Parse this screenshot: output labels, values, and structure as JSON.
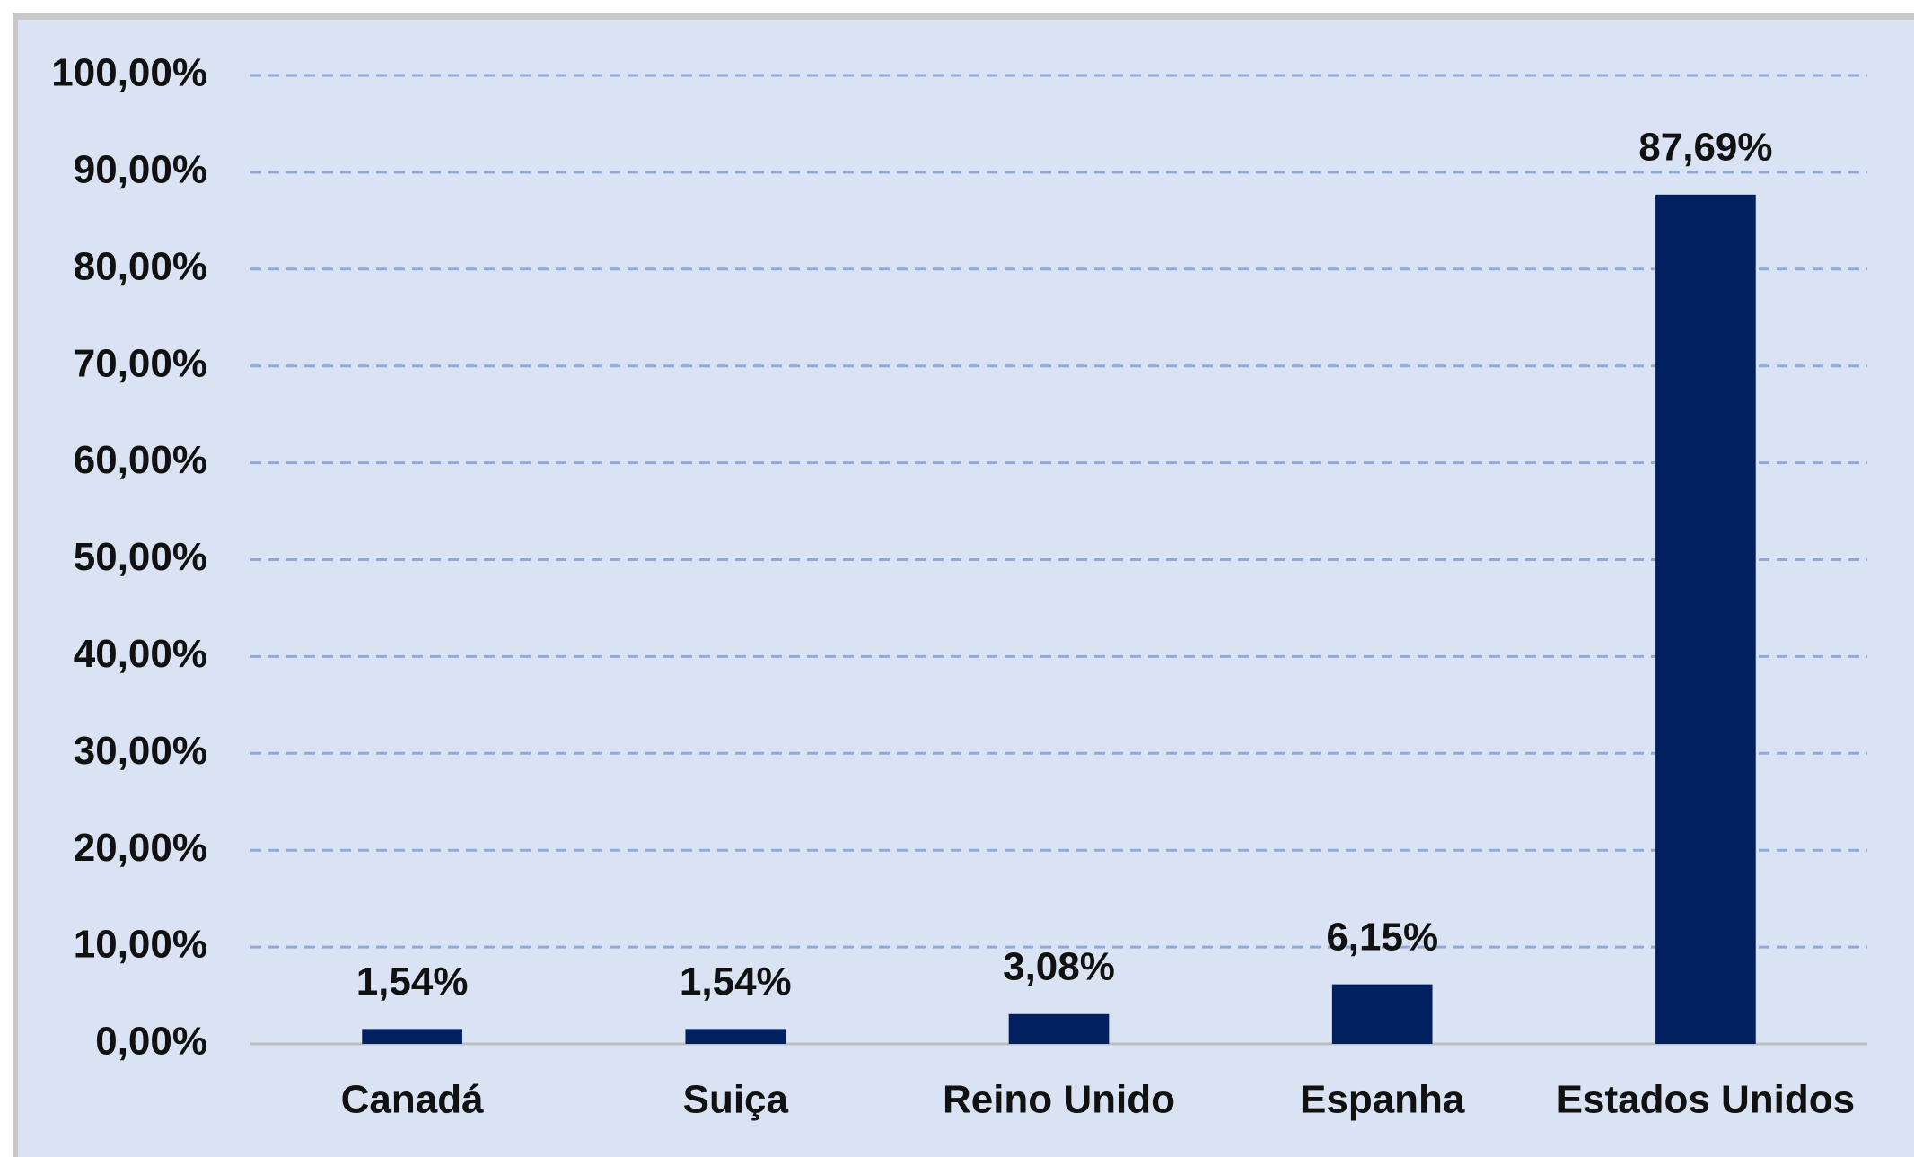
{
  "chart_data": {
    "type": "bar",
    "categories": [
      "Canadá",
      "Suiça",
      "Reino Unido",
      "Espanha",
      "Estados Unidos"
    ],
    "values": [
      1.54,
      1.54,
      3.08,
      6.15,
      87.69
    ],
    "value_labels": [
      "1,54%",
      "1,54%",
      "3,08%",
      "6,15%",
      "87,69%"
    ],
    "color": "#002060",
    "ylim": [
      0,
      100
    ],
    "yticks": [
      {
        "value": 0,
        "label": "0,00%"
      },
      {
        "value": 10,
        "label": "10,00%"
      },
      {
        "value": 20,
        "label": "20,00%"
      },
      {
        "value": 30,
        "label": "30,00%"
      },
      {
        "value": 40,
        "label": "40,00%"
      },
      {
        "value": 50,
        "label": "50,00%"
      },
      {
        "value": 60,
        "label": "60,00%"
      },
      {
        "value": 70,
        "label": "70,00%"
      },
      {
        "value": 80,
        "label": "80,00%"
      },
      {
        "value": 90,
        "label": "90,00%"
      },
      {
        "value": 100,
        "label": "100,00%"
      }
    ],
    "grid": true
  }
}
